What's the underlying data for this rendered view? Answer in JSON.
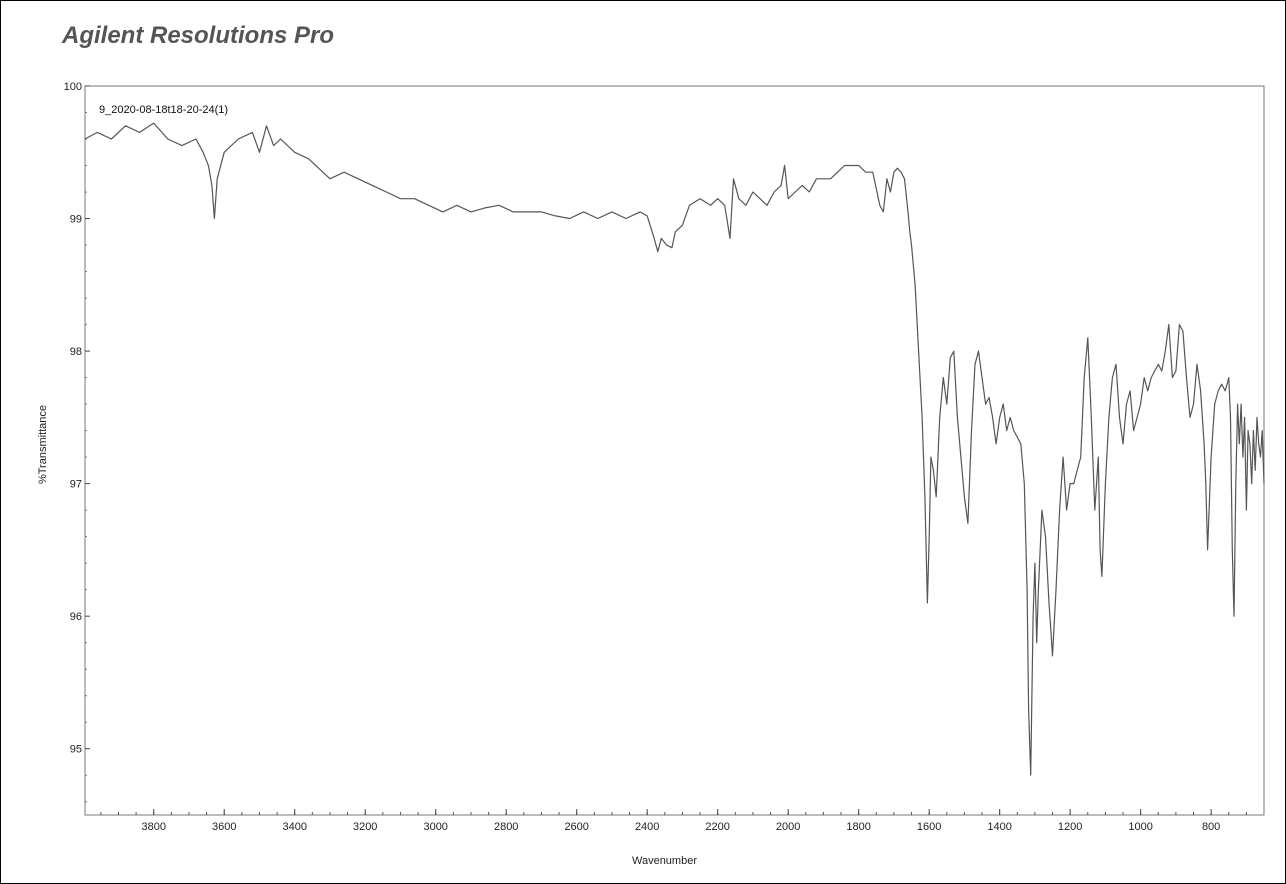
{
  "app": {
    "title": "Agilent Resolutions Pro"
  },
  "chart_data": {
    "type": "line",
    "title": "",
    "xlabel": "Wavenumber",
    "ylabel": "%Transmittance",
    "xlim": [
      3995,
      650
    ],
    "ylim": [
      94.5,
      100
    ],
    "x_reversed": true,
    "grid": false,
    "x_ticks": [
      3800,
      3600,
      3400,
      3200,
      3000,
      2800,
      2600,
      2400,
      2200,
      2000,
      1800,
      1600,
      1400,
      1200,
      1000,
      800
    ],
    "y_ticks": [
      95,
      96,
      97,
      98,
      99,
      100
    ],
    "line_color": "#555555",
    "series": [
      {
        "name": "9_2020-08-18t18-20-24(1)",
        "x": [
          3995,
          3960,
          3920,
          3880,
          3840,
          3800,
          3760,
          3720,
          3680,
          3660,
          3645,
          3635,
          3628,
          3620,
          3600,
          3560,
          3520,
          3500,
          3480,
          3460,
          3440,
          3400,
          3360,
          3320,
          3300,
          3260,
          3220,
          3180,
          3140,
          3100,
          3060,
          3020,
          2980,
          2940,
          2900,
          2860,
          2820,
          2780,
          2740,
          2700,
          2660,
          2620,
          2580,
          2540,
          2500,
          2460,
          2420,
          2400,
          2380,
          2370,
          2360,
          2345,
          2330,
          2320,
          2300,
          2280,
          2250,
          2220,
          2200,
          2180,
          2165,
          2155,
          2140,
          2120,
          2100,
          2080,
          2060,
          2040,
          2020,
          2010,
          2000,
          1980,
          1960,
          1940,
          1920,
          1900,
          1880,
          1860,
          1840,
          1820,
          1800,
          1780,
          1760,
          1740,
          1730,
          1720,
          1710,
          1700,
          1690,
          1680,
          1670,
          1660,
          1655,
          1650,
          1640,
          1630,
          1620,
          1612,
          1605,
          1600,
          1595,
          1588,
          1580,
          1570,
          1560,
          1550,
          1540,
          1530,
          1520,
          1510,
          1500,
          1490,
          1480,
          1470,
          1460,
          1450,
          1440,
          1430,
          1420,
          1410,
          1400,
          1390,
          1380,
          1370,
          1360,
          1350,
          1340,
          1330,
          1322,
          1318,
          1312,
          1305,
          1300,
          1295,
          1290,
          1280,
          1270,
          1260,
          1255,
          1250,
          1240,
          1230,
          1220,
          1210,
          1200,
          1190,
          1180,
          1170,
          1160,
          1150,
          1140,
          1130,
          1120,
          1115,
          1110,
          1100,
          1090,
          1080,
          1070,
          1060,
          1050,
          1040,
          1030,
          1020,
          1010,
          1000,
          990,
          980,
          970,
          960,
          950,
          940,
          930,
          920,
          910,
          900,
          890,
          880,
          870,
          860,
          850,
          840,
          830,
          820,
          815,
          810,
          800,
          790,
          780,
          770,
          760,
          750,
          745,
          740,
          735,
          730,
          725,
          720,
          715,
          710,
          705,
          700,
          695,
          690,
          685,
          680,
          675,
          670,
          665,
          660,
          655,
          650
        ],
        "y": [
          99.6,
          99.65,
          99.6,
          99.7,
          99.65,
          99.72,
          99.6,
          99.55,
          99.6,
          99.5,
          99.4,
          99.25,
          99.0,
          99.3,
          99.5,
          99.6,
          99.65,
          99.5,
          99.7,
          99.55,
          99.6,
          99.5,
          99.45,
          99.35,
          99.3,
          99.35,
          99.3,
          99.25,
          99.2,
          99.15,
          99.15,
          99.1,
          99.05,
          99.1,
          99.05,
          99.08,
          99.1,
          99.05,
          99.05,
          99.05,
          99.02,
          99.0,
          99.05,
          99.0,
          99.05,
          99.0,
          99.05,
          99.02,
          98.85,
          98.75,
          98.85,
          98.8,
          98.78,
          98.9,
          98.95,
          99.1,
          99.15,
          99.1,
          99.15,
          99.1,
          98.85,
          99.3,
          99.15,
          99.1,
          99.2,
          99.15,
          99.1,
          99.2,
          99.25,
          99.4,
          99.15,
          99.2,
          99.25,
          99.2,
          99.3,
          99.3,
          99.3,
          99.35,
          99.4,
          99.4,
          99.4,
          99.35,
          99.35,
          99.1,
          99.05,
          99.3,
          99.2,
          99.35,
          99.38,
          99.35,
          99.3,
          99.05,
          98.9,
          98.8,
          98.5,
          98.0,
          97.5,
          96.9,
          96.1,
          96.6,
          97.2,
          97.1,
          96.9,
          97.5,
          97.8,
          97.6,
          97.95,
          98.0,
          97.5,
          97.2,
          96.9,
          96.7,
          97.4,
          97.9,
          98.0,
          97.8,
          97.6,
          97.65,
          97.5,
          97.3,
          97.5,
          97.6,
          97.4,
          97.5,
          97.4,
          97.35,
          97.3,
          97.0,
          96.2,
          95.3,
          94.8,
          96.0,
          96.4,
          95.8,
          96.2,
          96.8,
          96.6,
          96.1,
          95.9,
          95.7,
          96.2,
          96.8,
          97.2,
          96.8,
          97.0,
          97.0,
          97.1,
          97.2,
          97.8,
          98.1,
          97.5,
          96.8,
          97.2,
          96.5,
          96.3,
          97.0,
          97.5,
          97.8,
          97.9,
          97.5,
          97.3,
          97.6,
          97.7,
          97.4,
          97.5,
          97.6,
          97.8,
          97.7,
          97.8,
          97.85,
          97.9,
          97.85,
          98.0,
          98.2,
          97.8,
          97.85,
          98.2,
          98.15,
          97.8,
          97.5,
          97.6,
          97.9,
          97.7,
          97.3,
          97.0,
          96.5,
          97.2,
          97.6,
          97.7,
          97.75,
          97.7,
          97.8,
          97.5,
          96.5,
          96.0,
          97.0,
          97.6,
          97.3,
          97.6,
          97.2,
          97.5,
          96.8,
          97.4,
          97.3,
          97.0,
          97.4,
          97.1,
          97.5,
          97.3,
          97.2,
          97.4,
          97.0
        ]
      }
    ]
  }
}
